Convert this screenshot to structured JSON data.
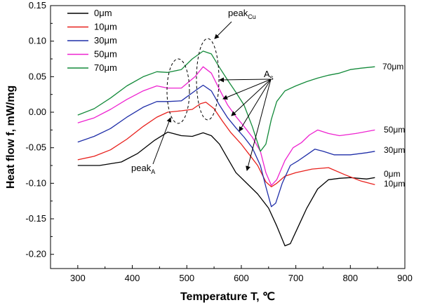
{
  "chart_data": {
    "type": "line",
    "xlabel": "Temperature T, ℃",
    "ylabel": "Heat flow f, mW/mg",
    "xlim": [
      250,
      900
    ],
    "ylim": [
      -0.22,
      0.15
    ],
    "xticks": [
      300,
      400,
      500,
      600,
      700,
      800,
      900
    ],
    "yticks": [
      -0.2,
      -0.15,
      -0.1,
      -0.05,
      0.0,
      0.05,
      0.1,
      0.15
    ],
    "grid": false,
    "legend_position": "top-left",
    "series": [
      {
        "name": "0μm",
        "color": "#000000",
        "end_label": "0μm",
        "points": [
          [
            300,
            -0.075
          ],
          [
            340,
            -0.075
          ],
          [
            380,
            -0.07
          ],
          [
            410,
            -0.058
          ],
          [
            440,
            -0.04
          ],
          [
            465,
            -0.028
          ],
          [
            490,
            -0.033
          ],
          [
            510,
            -0.034
          ],
          [
            530,
            -0.029
          ],
          [
            545,
            -0.033
          ],
          [
            560,
            -0.045
          ],
          [
            575,
            -0.065
          ],
          [
            590,
            -0.085
          ],
          [
            610,
            -0.1
          ],
          [
            630,
            -0.115
          ],
          [
            650,
            -0.135
          ],
          [
            665,
            -0.16
          ],
          [
            680,
            -0.188
          ],
          [
            690,
            -0.185
          ],
          [
            705,
            -0.16
          ],
          [
            720,
            -0.135
          ],
          [
            740,
            -0.108
          ],
          [
            760,
            -0.095
          ],
          [
            780,
            -0.093
          ],
          [
            800,
            -0.092
          ],
          [
            830,
            -0.094
          ],
          [
            845,
            -0.092
          ]
        ]
      },
      {
        "name": "10μm",
        "color": "#e8201c",
        "end_label": "10μm",
        "points": [
          [
            300,
            -0.067
          ],
          [
            330,
            -0.062
          ],
          [
            360,
            -0.053
          ],
          [
            390,
            -0.038
          ],
          [
            420,
            -0.02
          ],
          [
            445,
            -0.007
          ],
          [
            465,
            0.0
          ],
          [
            490,
            0.002
          ],
          [
            510,
            0.004
          ],
          [
            525,
            0.012
          ],
          [
            535,
            0.014
          ],
          [
            550,
            0.005
          ],
          [
            565,
            -0.012
          ],
          [
            580,
            -0.028
          ],
          [
            600,
            -0.045
          ],
          [
            615,
            -0.06
          ],
          [
            630,
            -0.075
          ],
          [
            645,
            -0.098
          ],
          [
            655,
            -0.105
          ],
          [
            665,
            -0.1
          ],
          [
            680,
            -0.09
          ],
          [
            700,
            -0.085
          ],
          [
            730,
            -0.08
          ],
          [
            760,
            -0.078
          ],
          [
            790,
            -0.088
          ],
          [
            820,
            -0.097
          ],
          [
            845,
            -0.102
          ]
        ]
      },
      {
        "name": "30μm",
        "color": "#1f2ea8",
        "end_label": "30μm",
        "points": [
          [
            300,
            -0.042
          ],
          [
            330,
            -0.034
          ],
          [
            360,
            -0.023
          ],
          [
            390,
            -0.007
          ],
          [
            420,
            0.007
          ],
          [
            445,
            0.015
          ],
          [
            465,
            0.015
          ],
          [
            490,
            0.016
          ],
          [
            515,
            0.03
          ],
          [
            530,
            0.038
          ],
          [
            545,
            0.03
          ],
          [
            560,
            0.01
          ],
          [
            575,
            -0.008
          ],
          [
            590,
            -0.022
          ],
          [
            605,
            -0.035
          ],
          [
            620,
            -0.05
          ],
          [
            635,
            -0.075
          ],
          [
            645,
            -0.105
          ],
          [
            655,
            -0.133
          ],
          [
            663,
            -0.128
          ],
          [
            675,
            -0.1
          ],
          [
            690,
            -0.075
          ],
          [
            705,
            -0.068
          ],
          [
            720,
            -0.06
          ],
          [
            735,
            -0.052
          ],
          [
            750,
            -0.055
          ],
          [
            770,
            -0.06
          ],
          [
            800,
            -0.06
          ],
          [
            830,
            -0.057
          ],
          [
            845,
            -0.055
          ]
        ]
      },
      {
        "name": "50μm",
        "color": "#ee22d0",
        "end_label": "50μm",
        "points": [
          [
            300,
            -0.015
          ],
          [
            330,
            -0.008
          ],
          [
            360,
            0.004
          ],
          [
            390,
            0.018
          ],
          [
            420,
            0.03
          ],
          [
            445,
            0.037
          ],
          [
            465,
            0.034
          ],
          [
            490,
            0.034
          ],
          [
            515,
            0.05
          ],
          [
            530,
            0.064
          ],
          [
            545,
            0.055
          ],
          [
            560,
            0.032
          ],
          [
            575,
            0.01
          ],
          [
            590,
            -0.006
          ],
          [
            605,
            -0.02
          ],
          [
            620,
            -0.035
          ],
          [
            635,
            -0.055
          ],
          [
            645,
            -0.085
          ],
          [
            655,
            -0.103
          ],
          [
            665,
            -0.095
          ],
          [
            680,
            -0.068
          ],
          [
            695,
            -0.05
          ],
          [
            710,
            -0.043
          ],
          [
            725,
            -0.032
          ],
          [
            740,
            -0.025
          ],
          [
            760,
            -0.03
          ],
          [
            780,
            -0.033
          ],
          [
            810,
            -0.03
          ],
          [
            845,
            -0.025
          ]
        ]
      },
      {
        "name": "70μm",
        "color": "#138a3a",
        "end_label": "70μm",
        "points": [
          [
            300,
            -0.004
          ],
          [
            330,
            0.005
          ],
          [
            360,
            0.02
          ],
          [
            390,
            0.037
          ],
          [
            420,
            0.05
          ],
          [
            445,
            0.057
          ],
          [
            465,
            0.056
          ],
          [
            490,
            0.06
          ],
          [
            510,
            0.075
          ],
          [
            530,
            0.086
          ],
          [
            545,
            0.082
          ],
          [
            560,
            0.063
          ],
          [
            575,
            0.045
          ],
          [
            590,
            0.028
          ],
          [
            605,
            0.01
          ],
          [
            620,
            -0.02
          ],
          [
            635,
            -0.055
          ],
          [
            645,
            -0.045
          ],
          [
            655,
            -0.01
          ],
          [
            665,
            0.015
          ],
          [
            680,
            0.03
          ],
          [
            700,
            0.037
          ],
          [
            720,
            0.043
          ],
          [
            740,
            0.048
          ],
          [
            760,
            0.052
          ],
          [
            780,
            0.055
          ],
          [
            800,
            0.06
          ],
          [
            820,
            0.062
          ],
          [
            845,
            0.064
          ]
        ]
      }
    ],
    "annotations": {
      "peak_cu": {
        "main": "peak",
        "sub": "Cu"
      },
      "peak_a": {
        "main": "peak",
        "sub": "A"
      },
      "as": {
        "main": "A",
        "sub": "s"
      }
    }
  }
}
